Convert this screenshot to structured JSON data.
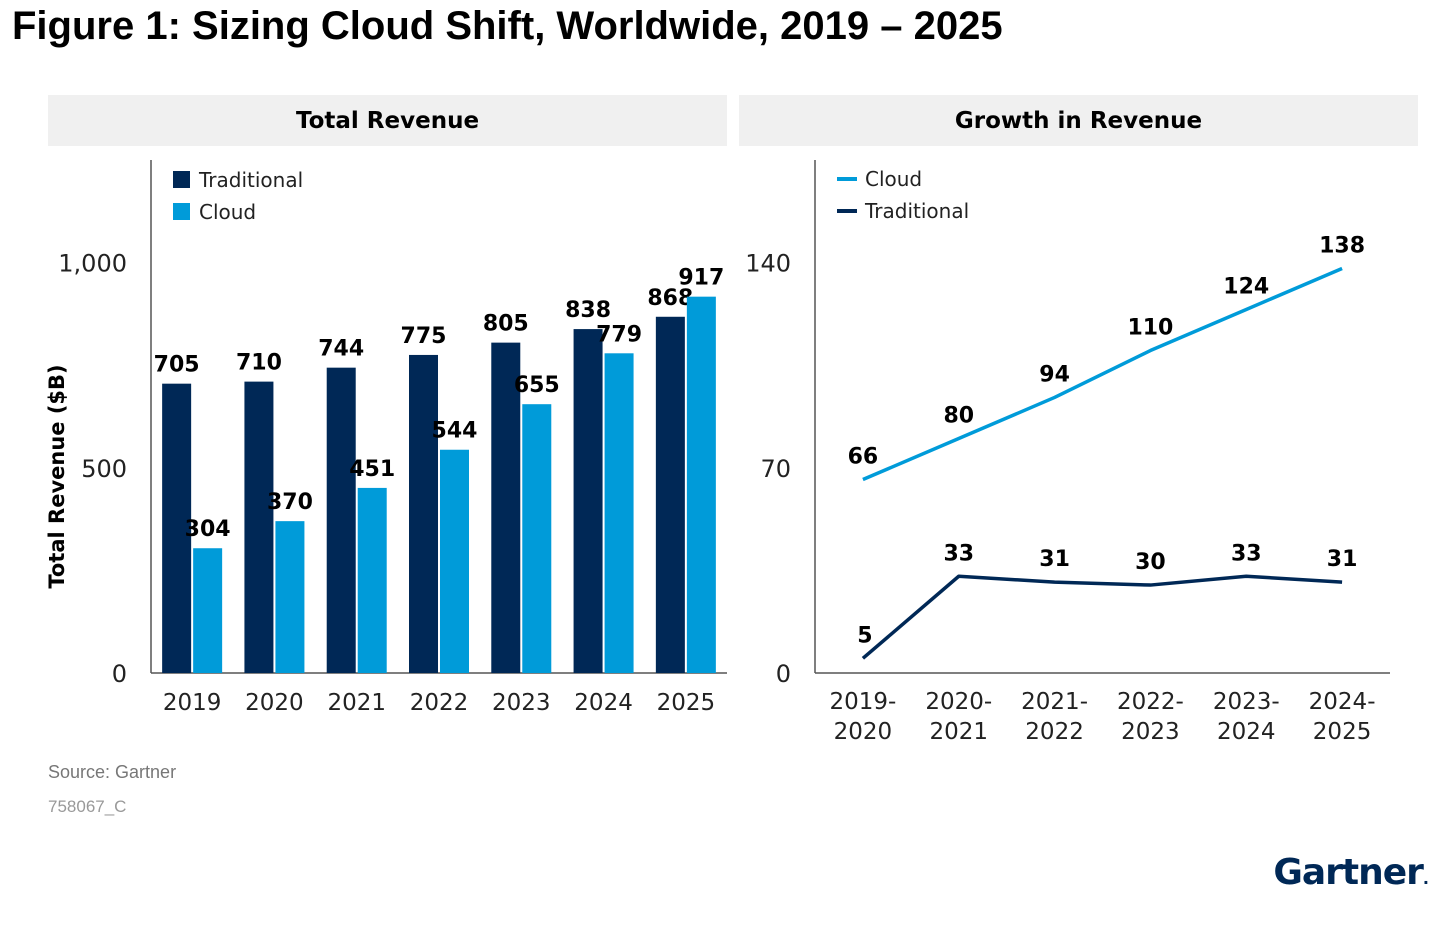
{
  "figure": {
    "title": "Figure 1: Sizing Cloud Shift, Worldwide, 2019 – 2025",
    "source": "Source: Gartner",
    "code": "758067_C",
    "brand": "Gartner"
  },
  "colors": {
    "traditional": "#002856",
    "cloud": "#009bd9",
    "header_bg": "#f0f0f0"
  },
  "chart_data": [
    {
      "type": "bar",
      "title": "Total Revenue",
      "ylabel": "Total Revenue ($B)",
      "xlabel": "",
      "ylim": [
        0,
        1250
      ],
      "yticks": [
        0,
        500,
        1000
      ],
      "ytick_labels": [
        "0",
        "500",
        "1,000"
      ],
      "categories": [
        "2019",
        "2020",
        "2021",
        "2022",
        "2023",
        "2024",
        "2025"
      ],
      "series": [
        {
          "name": "Traditional",
          "values": [
            705,
            710,
            744,
            775,
            805,
            838,
            868
          ]
        },
        {
          "name": "Cloud",
          "values": [
            304,
            370,
            451,
            544,
            655,
            779,
            917
          ]
        }
      ],
      "legend": "top-left",
      "grid": false
    },
    {
      "type": "line",
      "title": "Growth in Revenue",
      "ylabel": "",
      "xlabel": "",
      "ylim": [
        0,
        175
      ],
      "yticks": [
        0,
        70,
        140
      ],
      "ytick_labels": [
        "0",
        "70",
        "140"
      ],
      "categories": [
        "2019-\n2020",
        "2020-\n2021",
        "2021-\n2022",
        "2022-\n2023",
        "2023-\n2024",
        "2024-\n2025"
      ],
      "series": [
        {
          "name": "Cloud",
          "values": [
            66,
            80,
            94,
            110,
            124,
            138
          ]
        },
        {
          "name": "Traditional",
          "values": [
            5,
            33,
            31,
            30,
            33,
            31
          ]
        }
      ],
      "legend": "top-left",
      "grid": false
    }
  ]
}
